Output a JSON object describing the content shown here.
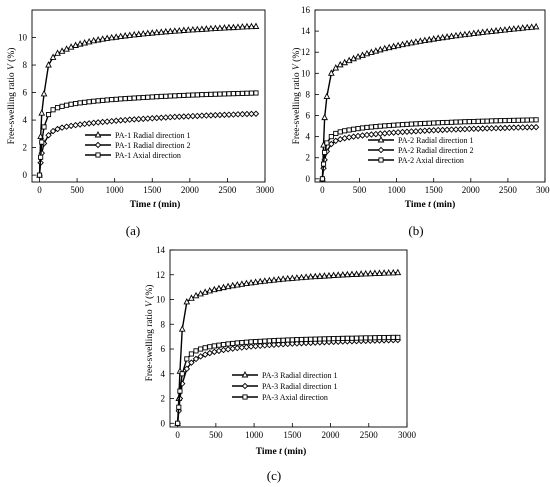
{
  "figure": {
    "panels": [
      {
        "label": "(a)",
        "xlabel_pre": "Time ",
        "xlabel_var": "t",
        "xlabel_post": " (min)",
        "ylabel_pre": "Free-swelling ratio ",
        "ylabel_var": "V",
        "ylabel_post": " (%)"
      },
      {
        "label": "(b)",
        "xlabel_pre": "Time ",
        "xlabel_var": "t",
        "xlabel_post": " (min)",
        "ylabel_pre": "Free-swelling ratio ",
        "ylabel_var": "V",
        "ylabel_post": " (%)"
      },
      {
        "label": "(c)",
        "xlabel_pre": "Time  ",
        "xlabel_var": "t",
        "xlabel_post": "  (min)",
        "ylabel_pre": "Free-swelling ratio  ",
        "ylabel_var": "V",
        "ylabel_post": " (%)"
      }
    ]
  },
  "chart_data": [
    {
      "type": "line",
      "panel": "(a)",
      "xlabel": "Time t (min)",
      "ylabel": "Free-swelling ratio V (%)",
      "xlim": [
        -100,
        3000
      ],
      "ylim": [
        -0.5,
        12
      ],
      "xticks": [
        0,
        500,
        1000,
        1500,
        2000,
        2500,
        3000
      ],
      "yticks": [
        0,
        2,
        4,
        6,
        8,
        10
      ],
      "legend_position": "center-left",
      "x": [
        0,
        15,
        30,
        60,
        120,
        180,
        240,
        300,
        360,
        420,
        480,
        540,
        600,
        660,
        720,
        780,
        840,
        900,
        960,
        1020,
        1080,
        1140,
        1200,
        1260,
        1320,
        1380,
        1440,
        1500,
        1560,
        1620,
        1680,
        1740,
        1800,
        1860,
        1920,
        1980,
        2040,
        2100,
        2160,
        2220,
        2280,
        2340,
        2400,
        2460,
        2520,
        2580,
        2640,
        2700,
        2760,
        2820,
        2880
      ],
      "series": [
        {
          "name": "PA-1 Radial direction 1",
          "marker": "triangle",
          "values": [
            0,
            2.8,
            4.5,
            5.9,
            8.0,
            8.55,
            8.85,
            9.0,
            9.15,
            9.3,
            9.42,
            9.52,
            9.6,
            9.68,
            9.76,
            9.82,
            9.88,
            9.93,
            9.98,
            10.02,
            10.07,
            10.11,
            10.15,
            10.19,
            10.22,
            10.26,
            10.29,
            10.32,
            10.35,
            10.38,
            10.41,
            10.43,
            10.46,
            10.48,
            10.51,
            10.53,
            10.55,
            10.57,
            10.59,
            10.61,
            10.63,
            10.65,
            10.67,
            10.69,
            10.71,
            10.72,
            10.74,
            10.76,
            10.78,
            10.79,
            10.8
          ]
        },
        {
          "name": "PA-1 Radial direction 2",
          "marker": "diamond",
          "values": [
            0,
            0.9,
            1.6,
            2.3,
            2.9,
            3.2,
            3.35,
            3.45,
            3.52,
            3.58,
            3.63,
            3.68,
            3.72,
            3.76,
            3.8,
            3.83,
            3.86,
            3.89,
            3.92,
            3.95,
            3.98,
            4.0,
            4.03,
            4.05,
            4.07,
            4.09,
            4.11,
            4.13,
            4.15,
            4.17,
            4.19,
            4.21,
            4.23,
            4.24,
            4.26,
            4.27,
            4.29,
            4.3,
            4.32,
            4.33,
            4.34,
            4.36,
            4.37,
            4.38,
            4.39,
            4.4,
            4.42,
            4.43,
            4.44,
            4.45,
            4.46
          ]
        },
        {
          "name": "PA-1 Axial direction",
          "marker": "square",
          "values": [
            0,
            1.3,
            2.4,
            3.5,
            4.4,
            4.75,
            4.9,
            5.0,
            5.08,
            5.15,
            5.2,
            5.25,
            5.29,
            5.33,
            5.37,
            5.4,
            5.43,
            5.46,
            5.49,
            5.51,
            5.54,
            5.56,
            5.58,
            5.6,
            5.62,
            5.64,
            5.66,
            5.68,
            5.7,
            5.72,
            5.73,
            5.75,
            5.76,
            5.78,
            5.79,
            5.81,
            5.82,
            5.83,
            5.85,
            5.86,
            5.87,
            5.88,
            5.89,
            5.9,
            5.91,
            5.92,
            5.93,
            5.94,
            5.95,
            5.96,
            5.97
          ]
        }
      ]
    },
    {
      "type": "line",
      "panel": "(b)",
      "xlabel": "Time t (min)",
      "ylabel": "Free-swelling ratio V (%)",
      "xlim": [
        -100,
        3000
      ],
      "ylim": [
        -0.3,
        16
      ],
      "xticks": [
        0,
        500,
        1000,
        1500,
        2000,
        2500,
        3000
      ],
      "yticks": [
        0,
        2,
        4,
        6,
        8,
        10,
        12,
        14,
        16
      ],
      "legend_position": "center-left",
      "x": [
        0,
        15,
        30,
        60,
        120,
        180,
        240,
        300,
        360,
        420,
        480,
        540,
        600,
        660,
        720,
        780,
        840,
        900,
        960,
        1020,
        1080,
        1140,
        1200,
        1260,
        1320,
        1380,
        1440,
        1500,
        1560,
        1620,
        1680,
        1740,
        1800,
        1860,
        1920,
        1980,
        2040,
        2100,
        2160,
        2220,
        2280,
        2340,
        2400,
        2460,
        2520,
        2580,
        2640,
        2700,
        2760,
        2820,
        2880
      ],
      "series": [
        {
          "name": "PA-2 Radial direction 1",
          "marker": "triangle",
          "values": [
            0,
            3.2,
            5.8,
            7.8,
            10.0,
            10.5,
            10.8,
            11.0,
            11.2,
            11.38,
            11.55,
            11.7,
            11.85,
            11.98,
            12.1,
            12.22,
            12.33,
            12.43,
            12.53,
            12.62,
            12.71,
            12.8,
            12.88,
            12.96,
            13.03,
            13.1,
            13.17,
            13.24,
            13.31,
            13.37,
            13.43,
            13.49,
            13.55,
            13.61,
            13.66,
            13.71,
            13.77,
            13.82,
            13.87,
            13.92,
            13.96,
            14.01,
            14.06,
            14.1,
            14.15,
            14.19,
            14.23,
            14.28,
            14.32,
            14.36,
            14.4
          ]
        },
        {
          "name": "PA-2 Radial direction 2",
          "marker": "diamond",
          "values": [
            0,
            1.0,
            1.8,
            2.6,
            3.3,
            3.6,
            3.75,
            3.85,
            3.93,
            4.0,
            4.06,
            4.11,
            4.16,
            4.2,
            4.24,
            4.28,
            4.31,
            4.35,
            4.38,
            4.41,
            4.44,
            4.46,
            4.49,
            4.51,
            4.53,
            4.56,
            4.58,
            4.6,
            4.62,
            4.63,
            4.65,
            4.67,
            4.68,
            4.7,
            4.71,
            4.73,
            4.74,
            4.75,
            4.77,
            4.78,
            4.79,
            4.8,
            4.81,
            4.82,
            4.84,
            4.85,
            4.86,
            4.87,
            4.88,
            4.89,
            4.9
          ]
        },
        {
          "name": "PA-2 Axial direction",
          "marker": "square",
          "values": [
            0,
            1.4,
            2.5,
            3.4,
            4.0,
            4.3,
            4.45,
            4.55,
            4.63,
            4.7,
            4.76,
            4.82,
            4.87,
            4.91,
            4.95,
            4.99,
            5.02,
            5.05,
            5.08,
            5.11,
            5.14,
            5.16,
            5.19,
            5.21,
            5.23,
            5.25,
            5.27,
            5.29,
            5.31,
            5.33,
            5.34,
            5.36,
            5.38,
            5.39,
            5.41,
            5.42,
            5.43,
            5.45,
            5.46,
            5.47,
            5.49,
            5.5,
            5.51,
            5.52,
            5.53,
            5.54,
            5.55,
            5.56,
            5.57,
            5.58,
            5.59
          ]
        }
      ]
    },
    {
      "type": "line",
      "panel": "(c)",
      "xlabel": "Time t (min)",
      "ylabel": "Free-swelling ratio V (%)",
      "xlim": [
        -100,
        3000
      ],
      "ylim": [
        -0.3,
        14
      ],
      "xticks": [
        0,
        500,
        1000,
        1500,
        2000,
        2500,
        3000
      ],
      "yticks": [
        0,
        2,
        4,
        6,
        8,
        10,
        12,
        14
      ],
      "legend_position": "lower-center",
      "x": [
        0,
        15,
        30,
        60,
        120,
        180,
        240,
        300,
        360,
        420,
        480,
        540,
        600,
        660,
        720,
        780,
        840,
        900,
        960,
        1020,
        1080,
        1140,
        1200,
        1260,
        1320,
        1380,
        1440,
        1500,
        1560,
        1620,
        1680,
        1740,
        1800,
        1860,
        1920,
        1980,
        2040,
        2100,
        2160,
        2220,
        2280,
        2340,
        2400,
        2460,
        2520,
        2580,
        2640,
        2700,
        2760,
        2820,
        2880
      ],
      "series": [
        {
          "name": "PA-3 Radial direction 1",
          "marker": "triangle",
          "values": [
            0,
            2.0,
            4.2,
            7.6,
            9.8,
            10.1,
            10.3,
            10.45,
            10.58,
            10.69,
            10.79,
            10.88,
            10.96,
            11.04,
            11.11,
            11.17,
            11.23,
            11.29,
            11.34,
            11.39,
            11.44,
            11.48,
            11.52,
            11.56,
            11.6,
            11.64,
            11.67,
            11.7,
            11.73,
            11.76,
            11.79,
            11.82,
            11.84,
            11.87,
            11.89,
            11.91,
            11.94,
            11.96,
            11.98,
            12.0,
            12.02,
            12.03,
            12.05,
            12.07,
            12.08,
            12.1,
            12.11,
            12.13,
            12.14,
            12.15,
            12.17
          ]
        },
        {
          "name": "PA-3 Radial direction 1",
          "marker": "diamond",
          "values": [
            0,
            1.0,
            2.0,
            3.2,
            4.4,
            4.9,
            5.2,
            5.4,
            5.55,
            5.67,
            5.77,
            5.85,
            5.92,
            5.98,
            6.03,
            6.08,
            6.12,
            6.16,
            6.2,
            6.23,
            6.26,
            6.29,
            6.32,
            6.34,
            6.37,
            6.39,
            6.41,
            6.43,
            6.45,
            6.47,
            6.49,
            6.5,
            6.52,
            6.54,
            6.55,
            6.57,
            6.58,
            6.59,
            6.61,
            6.62,
            6.63,
            6.64,
            6.65,
            6.66,
            6.67,
            6.68,
            6.69,
            6.7,
            6.71,
            6.72,
            6.73
          ]
        },
        {
          "name": "PA-3 Axial direction",
          "marker": "square",
          "values": [
            0,
            1.3,
            2.6,
            4.0,
            5.2,
            5.6,
            5.85,
            6.0,
            6.1,
            6.18,
            6.25,
            6.31,
            6.36,
            6.41,
            6.45,
            6.49,
            6.52,
            6.55,
            6.58,
            6.6,
            6.62,
            6.64,
            6.66,
            6.68,
            6.7,
            6.71,
            6.73,
            6.74,
            6.76,
            6.77,
            6.78,
            6.79,
            6.8,
            6.81,
            6.82,
            6.83,
            6.84,
            6.85,
            6.86,
            6.87,
            6.87,
            6.88,
            6.89,
            6.9,
            6.9,
            6.91,
            6.92,
            6.92,
            6.93,
            6.94,
            6.94
          ]
        }
      ]
    }
  ]
}
